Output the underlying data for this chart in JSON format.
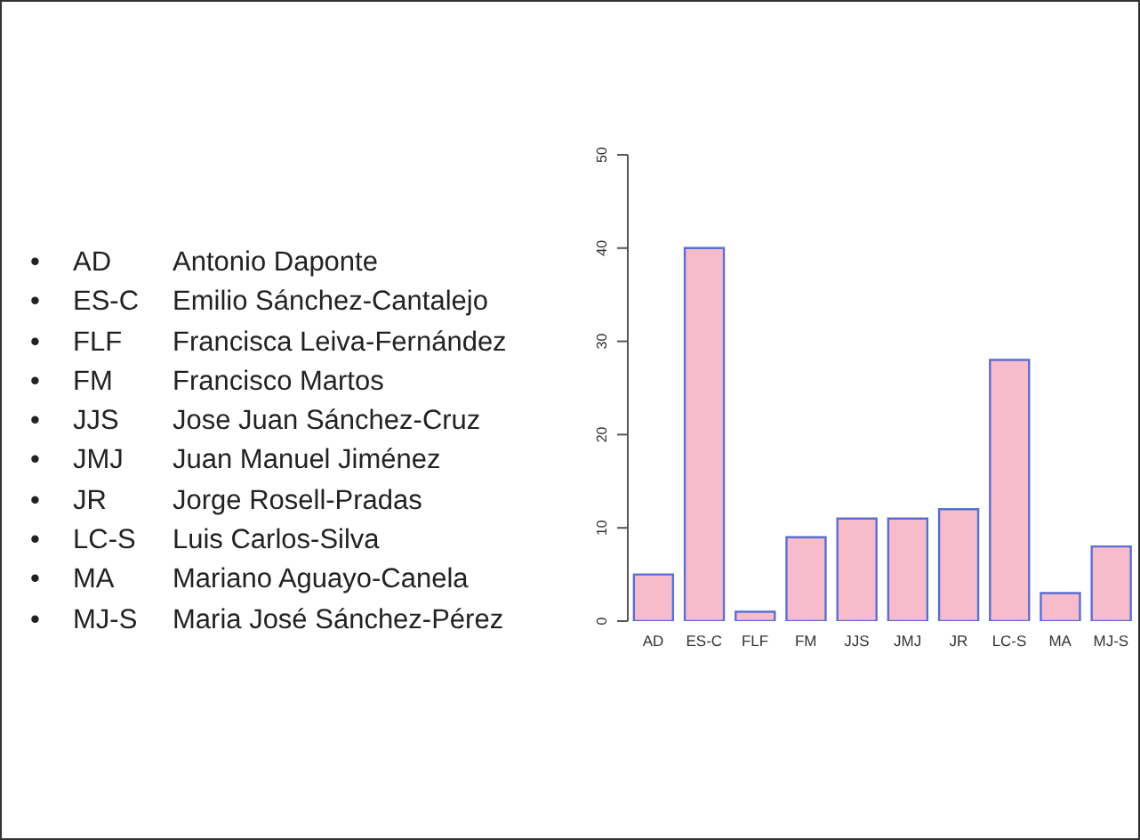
{
  "chart_data": {
    "type": "bar",
    "categories": [
      "AD",
      "ES-C",
      "FLF",
      "FM",
      "JJS",
      "JMJ",
      "JR",
      "LC-S",
      "MA",
      "MJ-S"
    ],
    "values": [
      5,
      40,
      1,
      9,
      11,
      11,
      12,
      28,
      3,
      8
    ],
    "color": "#f7bccb",
    "ylim": [
      0,
      50
    ],
    "yticks": [
      0,
      10,
      20,
      30,
      40,
      50
    ],
    "grid": false,
    "legend": false,
    "annotations": [
      "• AD Antonio Daponte",
      "• ES-C Emilio Sánchez-Cantalejo",
      "• FLF Francisca Leiva-Fernández",
      "• FM Francisco Martos",
      "• JJS Jose Juan Sánchez-Cruz",
      "• JMJ Juan Manuel Jiménez",
      "• JR Jorge Rosell-Pradas",
      "• LC-S Luis Carlos-Silva",
      "• MA Mariano Aguayo-Canela",
      "• MJ-S Maria José Sánchez-Pérez"
    ]
  }
}
